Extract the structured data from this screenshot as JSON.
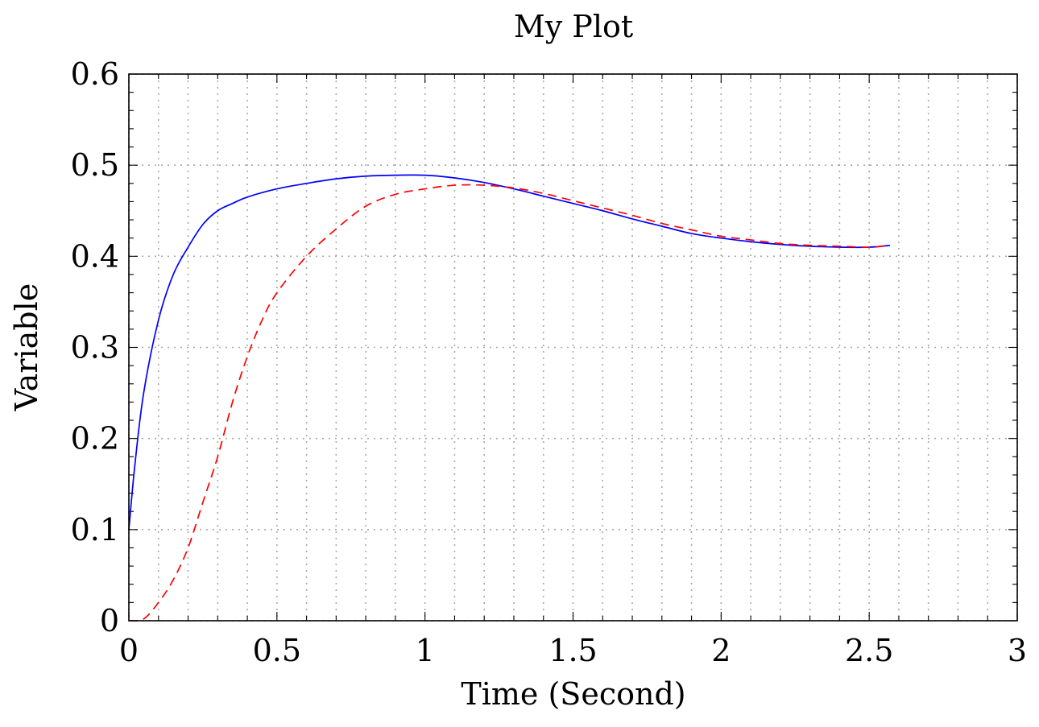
{
  "chart_data": {
    "type": "line",
    "title": "My Plot",
    "xlabel": "Time (Second)",
    "ylabel": "Variable",
    "xlim": [
      0,
      3
    ],
    "ylim": [
      0,
      0.6
    ],
    "xticks": [
      0,
      0.5,
      1,
      1.5,
      2,
      2.5,
      3
    ],
    "xtick_labels": [
      "0",
      "0.5",
      "1",
      "1.5",
      "2",
      "2.5",
      "3"
    ],
    "yticks": [
      0,
      0.1,
      0.2,
      0.3,
      0.4,
      0.5,
      0.6
    ],
    "ytick_labels": [
      "0",
      "0.1",
      "0.2",
      "0.3",
      "0.4",
      "0.5",
      "0.6"
    ],
    "x_minor_step": 0.1,
    "y_minor_step": 0.02,
    "grid": "dotted major and minor",
    "series": [
      {
        "color": "#0000ff",
        "dash": "solid",
        "x": [
          0,
          0.02,
          0.05,
          0.1,
          0.15,
          0.2,
          0.25,
          0.3,
          0.35,
          0.4,
          0.5,
          0.6,
          0.7,
          0.8,
          0.9,
          1.0,
          1.1,
          1.2,
          1.3,
          1.4,
          1.5,
          1.6,
          1.7,
          1.8,
          1.9,
          2.0,
          2.1,
          2.2,
          2.3,
          2.4,
          2.5,
          2.57
        ],
        "y": [
          0.1,
          0.17,
          0.25,
          0.33,
          0.38,
          0.41,
          0.435,
          0.45,
          0.458,
          0.465,
          0.474,
          0.48,
          0.485,
          0.488,
          0.489,
          0.489,
          0.486,
          0.481,
          0.474,
          0.466,
          0.458,
          0.45,
          0.441,
          0.433,
          0.425,
          0.42,
          0.416,
          0.413,
          0.411,
          0.41,
          0.41,
          0.412
        ]
      },
      {
        "color": "#ff0000",
        "dash": "dashed",
        "x": [
          0,
          0.05,
          0.1,
          0.15,
          0.2,
          0.25,
          0.3,
          0.35,
          0.4,
          0.45,
          0.5,
          0.6,
          0.7,
          0.8,
          0.9,
          1.0,
          1.1,
          1.2,
          1.3,
          1.4,
          1.5,
          1.6,
          1.7,
          1.8,
          1.9,
          2.0,
          2.1,
          2.2,
          2.3,
          2.4,
          2.5,
          2.57
        ],
        "y": [
          0,
          0.002,
          0.02,
          0.045,
          0.08,
          0.13,
          0.18,
          0.24,
          0.29,
          0.33,
          0.36,
          0.4,
          0.43,
          0.455,
          0.468,
          0.474,
          0.478,
          0.478,
          0.475,
          0.469,
          0.461,
          0.453,
          0.445,
          0.436,
          0.429,
          0.422,
          0.418,
          0.414,
          0.412,
          0.411,
          0.41,
          0.412
        ]
      }
    ]
  }
}
